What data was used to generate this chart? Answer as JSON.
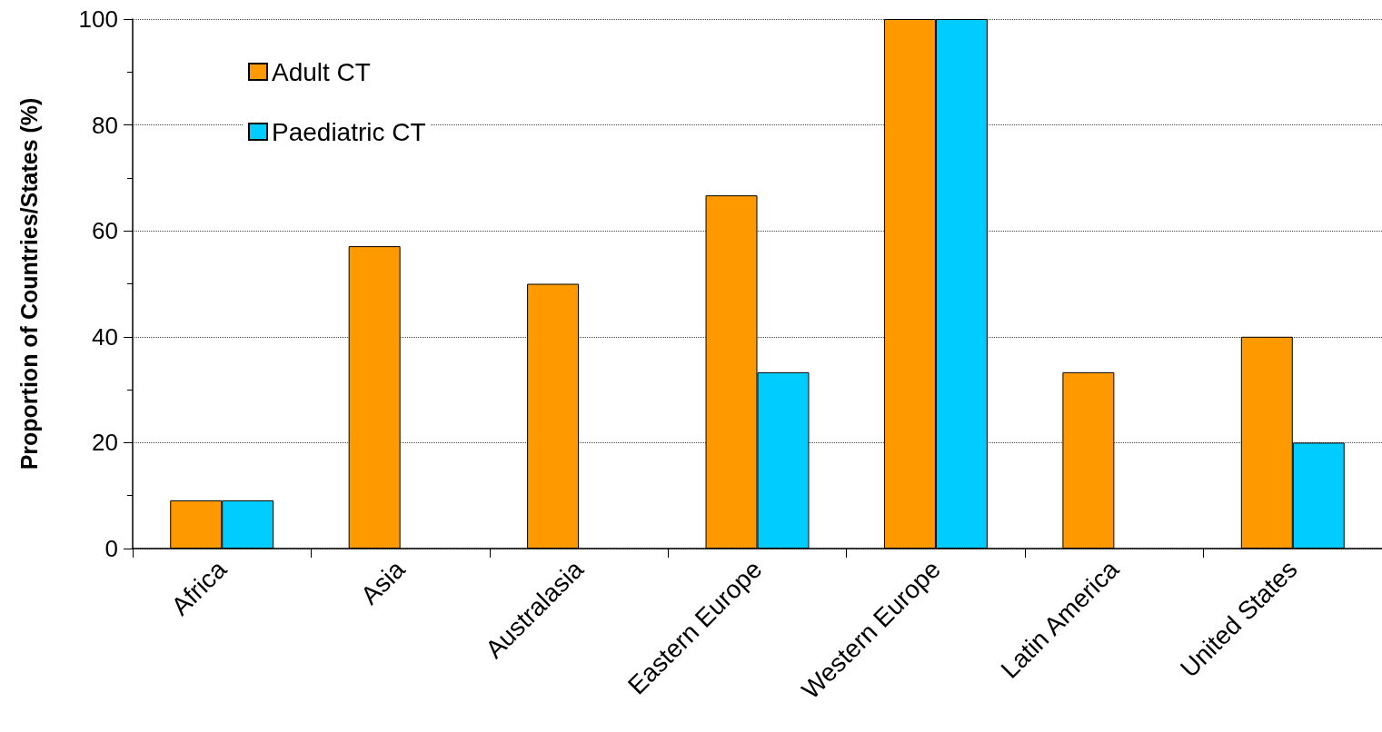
{
  "chart_data": {
    "type": "bar",
    "ylabel": "Proportion of Countries/States (%)",
    "categories": [
      "Africa",
      "Asia",
      "Australasia",
      "Eastern Europe",
      "Western Europe",
      "Latin America",
      "United States"
    ],
    "series": [
      {
        "name": "Adult CT",
        "color": "#ff9900",
        "values": [
          9.1,
          57.1,
          50,
          66.7,
          100,
          33.3,
          40
        ]
      },
      {
        "name": "Paediatric CT",
        "color": "#00ccff",
        "values": [
          9.1,
          0,
          0,
          33.3,
          100,
          0,
          20
        ]
      }
    ],
    "ylim": [
      0,
      100
    ],
    "yticks": [
      0,
      20,
      40,
      60,
      80,
      100
    ],
    "grid": "y",
    "legend": "top left"
  }
}
